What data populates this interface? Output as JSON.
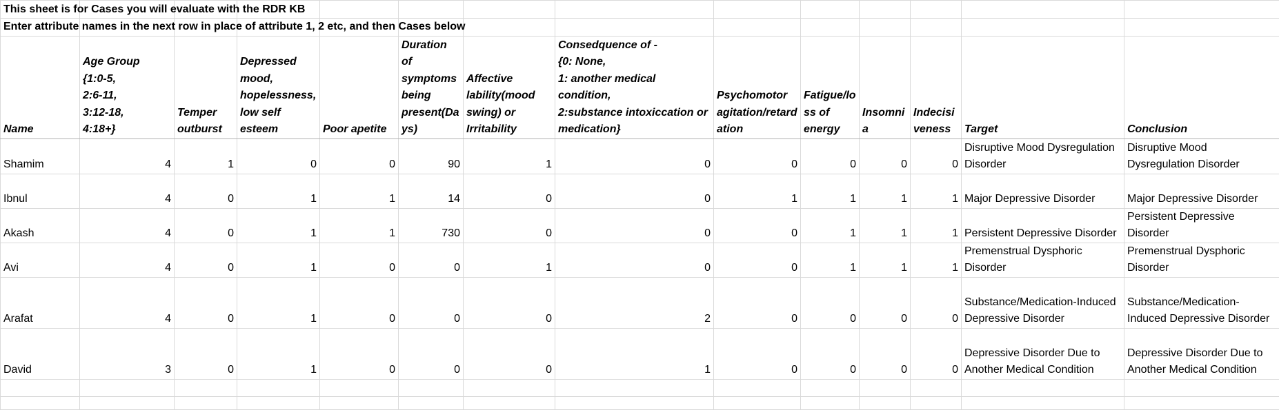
{
  "notes": [
    "This sheet is for Cases you will evaluate with the RDR KB",
    "Enter attribute names in the next row in place of attribute 1, 2 etc, and then Cases below"
  ],
  "table": {
    "header": [
      "Name",
      "Age Group\n{1:0-5,\n2:6-11,\n3:12-18,\n4:18+}",
      "Temper outburst",
      "Depressed mood, hopelessness, low self esteem",
      "Poor apetite",
      "Duration of symptoms being present(Days)",
      "Affective lability(mood swing) or Irritability",
      "Consedquence of -\n{0: None,\n1: another medical condition,\n2:substance intoxiccation or medication}",
      "Psychomotor agitation/retardation",
      "Fatigue/loss of energy",
      "Insomnia",
      "Indecisiveness",
      "Target",
      "Conclusion"
    ],
    "rows": [
      [
        "Shamim",
        4,
        1,
        0,
        0,
        90,
        1,
        0,
        0,
        0,
        0,
        0,
        "Disruptive Mood Dysregulation Disorder",
        "Disruptive Mood Dysregulation Disorder"
      ],
      [
        "Ibnul",
        4,
        0,
        1,
        1,
        14,
        0,
        0,
        1,
        1,
        1,
        1,
        "Major Depressive Disorder",
        "Major Depressive Disorder"
      ],
      [
        "Akash",
        4,
        0,
        1,
        1,
        730,
        0,
        0,
        0,
        1,
        1,
        1,
        "Persistent Depressive Disorder",
        "Persistent Depressive Disorder"
      ],
      [
        "Avi",
        4,
        0,
        1,
        0,
        0,
        1,
        0,
        0,
        1,
        1,
        1,
        "Premenstrual Dysphoric Disorder",
        "Premenstrual Dysphoric Disorder"
      ],
      [
        "Arafat",
        4,
        0,
        1,
        0,
        0,
        0,
        2,
        0,
        0,
        0,
        0,
        "Substance/Medication-Induced Depressive Disorder",
        "Substance/Medication-Induced Depressive Disorder"
      ],
      [
        "David",
        3,
        0,
        1,
        0,
        0,
        0,
        1,
        0,
        0,
        0,
        0,
        "Depressive Disorder Due to Another Medical Condition",
        "Depressive Disorder Due to Another Medical Condition"
      ]
    ]
  }
}
